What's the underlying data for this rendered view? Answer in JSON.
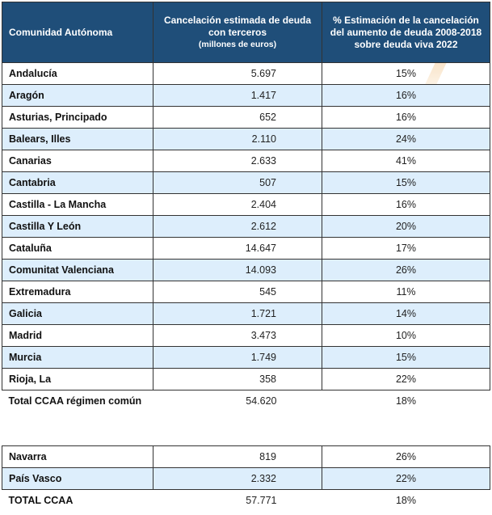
{
  "table": {
    "headers": [
      {
        "main": "Comunidad Autónoma",
        "sub": ""
      },
      {
        "main": "Cancelación estimada de deuda con terceros",
        "sub": "(millones de euros)"
      },
      {
        "main": "% Estimación de la cancelación del aumento de deuda 2008-2018 sobre deuda viva 2022",
        "sub": ""
      }
    ],
    "rows": [
      {
        "region": "Andalucía",
        "amount": "5.697",
        "pct": "15%"
      },
      {
        "region": "Aragón",
        "amount": "1.417",
        "pct": "16%"
      },
      {
        "region": "Asturias, Principado",
        "amount": "652",
        "pct": "16%"
      },
      {
        "region": "Balears, Illes",
        "amount": "2.110",
        "pct": "24%"
      },
      {
        "region": "Canarias",
        "amount": "2.633",
        "pct": "41%"
      },
      {
        "region": "Cantabria",
        "amount": "507",
        "pct": "15%"
      },
      {
        "region": "Castilla - La Mancha",
        "amount": "2.404",
        "pct": "16%"
      },
      {
        "region": "Castilla Y León",
        "amount": "2.612",
        "pct": "20%"
      },
      {
        "region": "Cataluña",
        "amount": "14.647",
        "pct": "17%"
      },
      {
        "region": "Comunitat Valenciana",
        "amount": "14.093",
        "pct": "26%"
      },
      {
        "region": "Extremadura",
        "amount": "545",
        "pct": "11%"
      },
      {
        "region": "Galicia",
        "amount": "1.721",
        "pct": "14%"
      },
      {
        "region": "Madrid",
        "amount": "3.473",
        "pct": "10%"
      },
      {
        "region": "Murcia",
        "amount": "1.749",
        "pct": "15%"
      },
      {
        "region": "Rioja, La",
        "amount": "358",
        "pct": "22%"
      }
    ],
    "subtotal": {
      "region": "Total CCAA régimen común",
      "amount": "54.620",
      "pct": "18%"
    },
    "foral_rows": [
      {
        "region": "Navarra",
        "amount": "819",
        "pct": "26%"
      },
      {
        "region": "País Vasco",
        "amount": "2.332",
        "pct": "22%"
      }
    ],
    "total": {
      "region": "TOTAL CCAA",
      "amount": "57.771",
      "pct": "18%"
    }
  },
  "colors": {
    "header_bg": "#1f4e79",
    "alt_row_bg": "#ddeefc"
  }
}
